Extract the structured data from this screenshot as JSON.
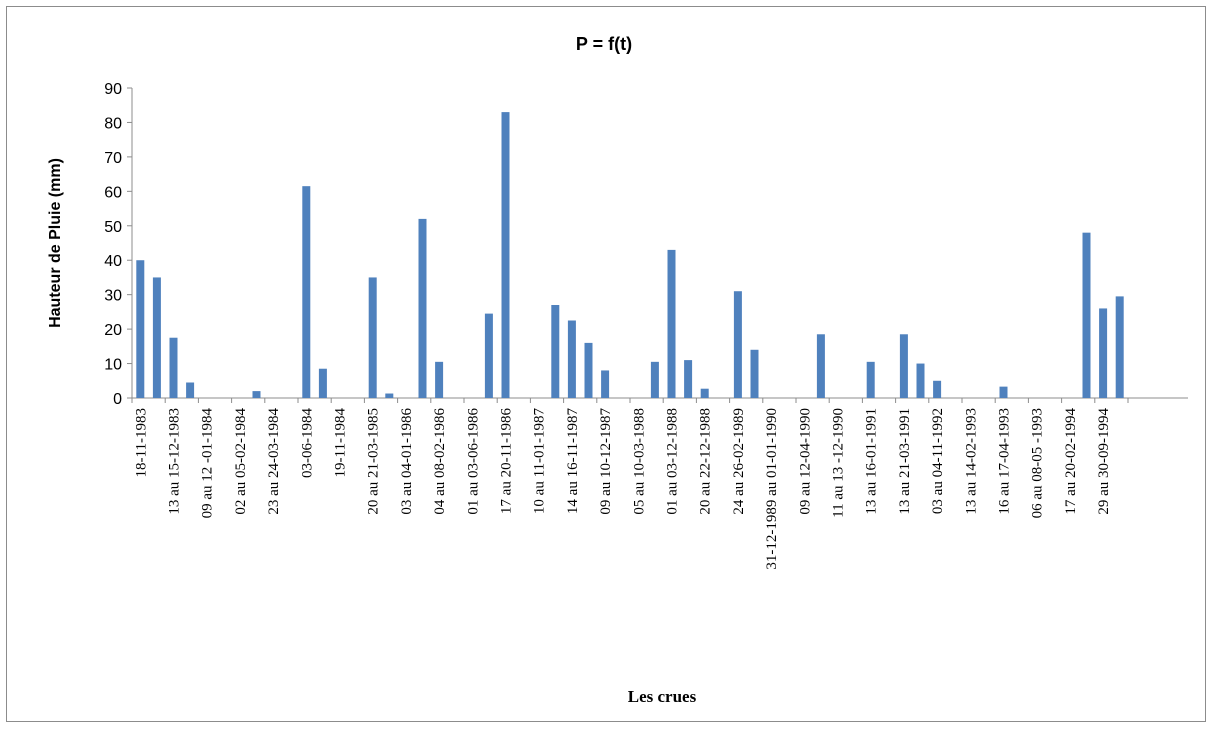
{
  "chart_data": {
    "type": "bar",
    "title": "P = f(t)",
    "xlabel": "Les crues",
    "ylabel": "Hauteur de Pluie (mm)",
    "ylim": [
      0,
      90
    ],
    "yticks": [
      0,
      10,
      20,
      30,
      40,
      50,
      60,
      70,
      80,
      90
    ],
    "grid": false,
    "legend": "none",
    "bar_color": "#4f81bd",
    "values": [
      40,
      35,
      17.5,
      4.5,
      0,
      0,
      0,
      2,
      0,
      0,
      61.5,
      8.5,
      0,
      0,
      35,
      1.3,
      0,
      52,
      10.5,
      0,
      0,
      24.5,
      83,
      0,
      0,
      27,
      22.5,
      16,
      8,
      0,
      0,
      10.5,
      43,
      11,
      2.7,
      0,
      31,
      14,
      0,
      0,
      0,
      18.5,
      0,
      0,
      10.5,
      0,
      18.5,
      10,
      5,
      0,
      0,
      0,
      3.3,
      0,
      0,
      0,
      0,
      48,
      26,
      29.5
    ],
    "tick_labels": [
      {
        "index": 0,
        "label": "18-11-1983"
      },
      {
        "index": 2,
        "label": "13 au 15-12-1983"
      },
      {
        "index": 4,
        "label": "09 au 12 -01-1984"
      },
      {
        "index": 6,
        "label": "02 au 05-02-1984"
      },
      {
        "index": 8,
        "label": "23 au 24-03-1984"
      },
      {
        "index": 10,
        "label": "03-06-1984"
      },
      {
        "index": 12,
        "label": "19-11-1984"
      },
      {
        "index": 14,
        "label": "20 au 21-03-1985"
      },
      {
        "index": 16,
        "label": "03 au 04-01-1986"
      },
      {
        "index": 18,
        "label": "04 au 08-02-1986"
      },
      {
        "index": 20,
        "label": "01 au 03-06-1986"
      },
      {
        "index": 22,
        "label": "17 au 20-11-1986"
      },
      {
        "index": 24,
        "label": "10 au 11-01-1987"
      },
      {
        "index": 26,
        "label": "14 au 16-11-1987"
      },
      {
        "index": 28,
        "label": "09 au 10-12-1987"
      },
      {
        "index": 30,
        "label": "05 au 10-03-1988"
      },
      {
        "index": 32,
        "label": "01 au 03-12-1988"
      },
      {
        "index": 34,
        "label": "20 au 22-12-1988"
      },
      {
        "index": 36,
        "label": "24 au 26-02-1989"
      },
      {
        "index": 38,
        "label": "31-12-1989 au 01-01-1990"
      },
      {
        "index": 40,
        "label": "09 au 12-04-1990"
      },
      {
        "index": 42,
        "label": "11 au 13 -12-1990"
      },
      {
        "index": 44,
        "label": "13 au 16-01-1991"
      },
      {
        "index": 46,
        "label": "13 au 21-03-1991"
      },
      {
        "index": 48,
        "label": "03 au 04-11-1992"
      },
      {
        "index": 50,
        "label": "13 au 14-02-1993"
      },
      {
        "index": 52,
        "label": "16 au 17-04-1993"
      },
      {
        "index": 54,
        "label": "06 au 08-05 -1993"
      },
      {
        "index": 56,
        "label": "17 au 20-02-1994"
      },
      {
        "index": 58,
        "label": "29 au 30-09-1994"
      }
    ]
  }
}
